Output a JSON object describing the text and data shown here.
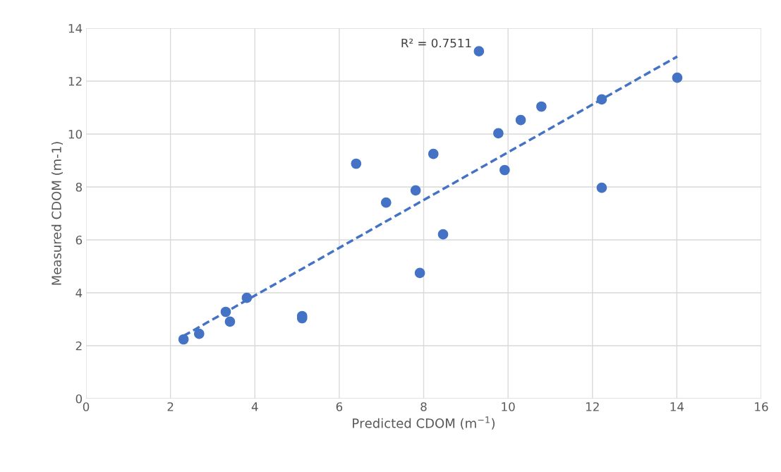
{
  "chart_data": {
    "type": "scatter",
    "xlabel": "Predicted CDOM (m$^{−1}$)",
    "ylabel": "Measured CDOM (m-1)",
    "xlim": [
      0,
      16
    ],
    "xticks": [
      0,
      2,
      4,
      6,
      8,
      10,
      12,
      14,
      16
    ],
    "ylim": [
      0,
      14
    ],
    "yticks": [
      0,
      2,
      4,
      6,
      8,
      10,
      12,
      14
    ],
    "grid": true,
    "marker": "circle",
    "series": [
      {
        "color": "#4472c4",
        "x": [
          2.31,
          2.68,
          3.31,
          3.41,
          3.81,
          5.12,
          5.12,
          6.4,
          7.11,
          7.81,
          7.91,
          8.23,
          8.46,
          9.31,
          9.77,
          9.92,
          10.3,
          10.79,
          12.22,
          12.22,
          14.01
        ],
        "values": [
          2.24,
          2.45,
          3.28,
          2.91,
          3.81,
          3.12,
          3.04,
          8.88,
          7.41,
          7.87,
          4.75,
          9.25,
          6.21,
          13.13,
          10.03,
          8.64,
          10.53,
          11.04,
          11.31,
          7.97,
          12.13
        ]
      },
      {
        "type": "line",
        "color": "#4472c4",
        "line_style": "dashed",
        "marker": "none",
        "x": [
          2.31,
          14.01
        ],
        "values": [
          2.37,
          12.93
        ]
      }
    ],
    "annotations": [
      "R² = 0.7511"
    ]
  }
}
